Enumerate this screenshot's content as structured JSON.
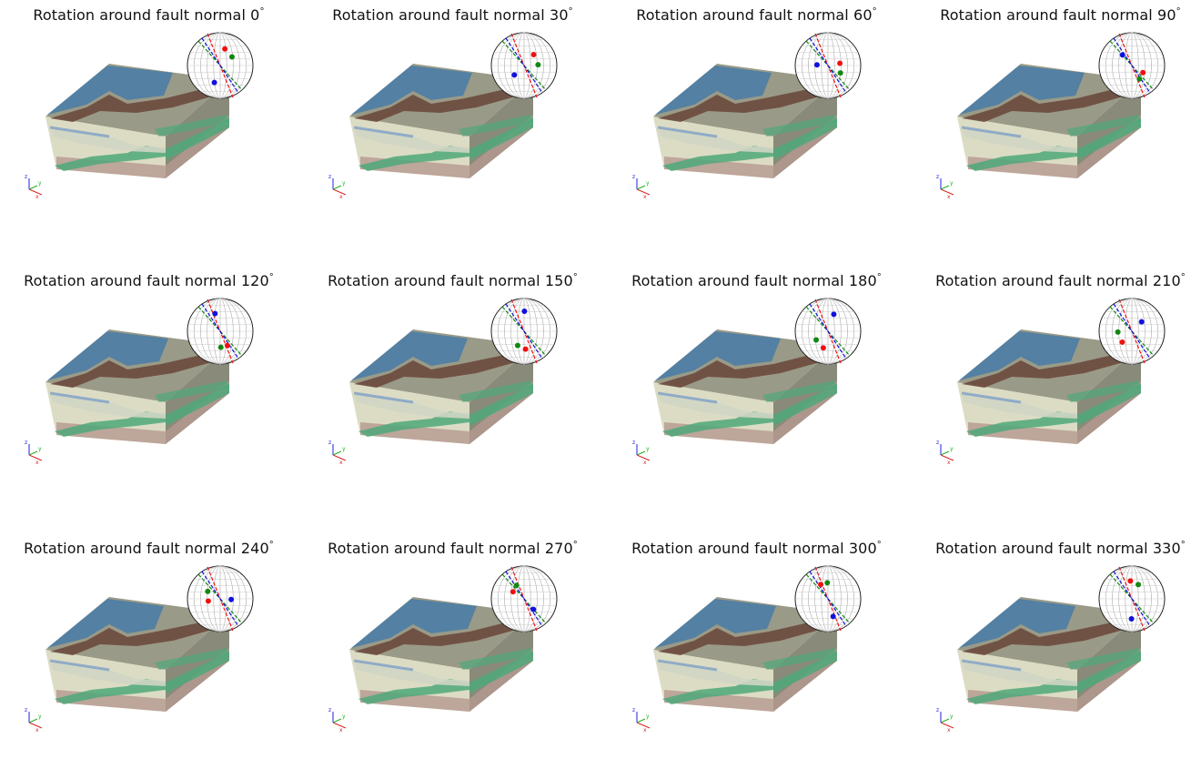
{
  "panels": [
    {
      "title": "Rotation around fault normal 0",
      "angle": 0
    },
    {
      "title": "Rotation around fault normal 30",
      "angle": 30
    },
    {
      "title": "Rotation around fault normal 60",
      "angle": 60
    },
    {
      "title": "Rotation around fault normal 90",
      "angle": 90
    },
    {
      "title": "Rotation around fault normal 120",
      "angle": 120
    },
    {
      "title": "Rotation around fault normal 150",
      "angle": 150
    },
    {
      "title": "Rotation around fault normal 180",
      "angle": 180
    },
    {
      "title": "Rotation around fault normal 210",
      "angle": 210
    },
    {
      "title": "Rotation around fault normal 240",
      "angle": 240
    },
    {
      "title": "Rotation around fault normal 270",
      "angle": 270
    },
    {
      "title": "Rotation around fault normal 300",
      "angle": 300
    },
    {
      "title": "Rotation around fault normal 330",
      "angle": 330
    }
  ],
  "degree_symbol": "°",
  "axis_labels": {
    "x": "x",
    "y": "y",
    "z": "z"
  },
  "colors": {
    "top_blue": "#4f7ea4",
    "brown": "#6b4a3d",
    "block_face": "#9a9a88",
    "pale_band": "#dcdcc4",
    "green_band": "#4fa87a",
    "pink_bottom": "#b59890",
    "stereonet_red": "#ee1111",
    "stereonet_green": "#118811",
    "stereonet_blue": "#1111dd"
  }
}
